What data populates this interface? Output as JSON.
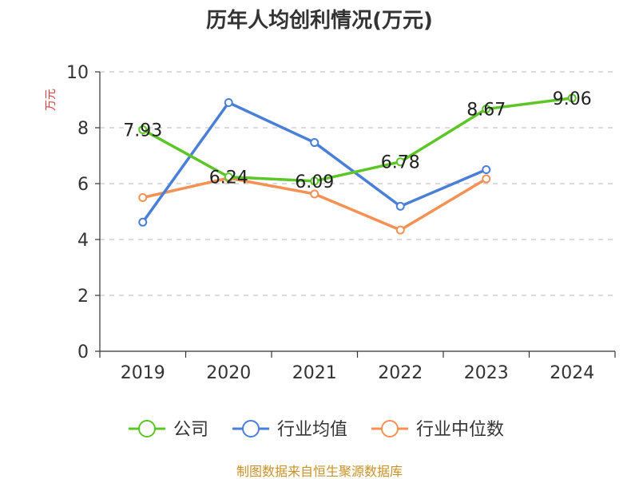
{
  "chart_data": {
    "type": "line",
    "title": "历年人均创利情况(万元)",
    "ylabel": "万元",
    "ylim": [
      0,
      10
    ],
    "yticks": [
      0,
      2,
      4,
      6,
      8,
      10
    ],
    "categories": [
      "2019",
      "2020",
      "2021",
      "2022",
      "2023",
      "2024"
    ],
    "series": [
      {
        "name": "公司",
        "color": "#5cc628",
        "values": [
          7.93,
          6.24,
          6.09,
          6.78,
          8.67,
          9.06
        ],
        "labels": [
          "7.93",
          "6.24",
          "6.09",
          "6.78",
          "8.67",
          "9.06"
        ]
      },
      {
        "name": "行业均值",
        "color": "#4a7fd8",
        "values": [
          4.62,
          8.9,
          7.47,
          5.19,
          6.5,
          null
        ]
      },
      {
        "name": "行业中位数",
        "color": "#f59154",
        "values": [
          5.5,
          6.2,
          5.63,
          4.34,
          6.17,
          null
        ]
      }
    ],
    "grid": true,
    "legend_position": "bottom"
  },
  "source": "制图数据来自恒生聚源数据库"
}
